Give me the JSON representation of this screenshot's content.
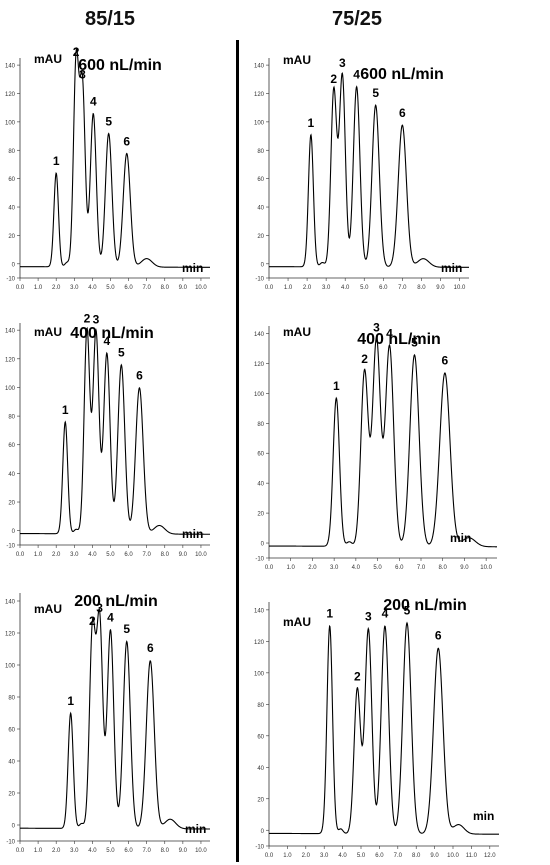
{
  "columns": [
    {
      "header": "85/15"
    },
    {
      "header": "75/25"
    }
  ],
  "common": {
    "y_unit": "mAU",
    "x_unit": "min",
    "peak_labels": [
      "1",
      "2",
      "3",
      "4",
      "5",
      "6"
    ],
    "trace_color": "#000000"
  },
  "chart_data": [
    {
      "type": "line",
      "title": "600 nL/min",
      "ylabel": "mAU",
      "xlabel": "min",
      "xlim": [
        0,
        10.5
      ],
      "ylim": [
        -10,
        145
      ],
      "xticks": [
        "0.0",
        "1.0",
        "2.0",
        "3.0",
        "4.0",
        "5.0",
        "6.0",
        "7.0",
        "8.0",
        "9.0",
        "10.0"
      ],
      "yticks": [
        "-10",
        "0",
        "20",
        "40",
        "60",
        "80",
        "100",
        "120",
        "140"
      ],
      "peaks": [
        {
          "label": "1",
          "time": 2.0,
          "height": 66
        },
        {
          "label": "2",
          "time": 3.1,
          "height": 143
        },
        {
          "label": "3",
          "time": 3.45,
          "height": 127
        },
        {
          "label": "4",
          "time": 4.05,
          "height": 108
        },
        {
          "label": "5",
          "time": 4.9,
          "height": 94
        },
        {
          "label": "6",
          "time": 5.9,
          "height": 80
        }
      ]
    },
    {
      "type": "line",
      "title": "600 nL/min",
      "ylabel": "mAU",
      "xlabel": "min",
      "xlim": [
        0,
        10.5
      ],
      "ylim": [
        -10,
        145
      ],
      "xticks": [
        "0.0",
        "1.0",
        "2.0",
        "3.0",
        "4.0",
        "5.0",
        "6.0",
        "7.0",
        "8.0",
        "9.0",
        "10.0"
      ],
      "yticks": [
        "-10",
        "0",
        "20",
        "40",
        "60",
        "80",
        "100",
        "120",
        "140"
      ],
      "peaks": [
        {
          "label": "1",
          "time": 2.2,
          "height": 93
        },
        {
          "label": "2",
          "time": 3.4,
          "height": 124
        },
        {
          "label": "3",
          "time": 3.85,
          "height": 135
        },
        {
          "label": "4",
          "time": 4.6,
          "height": 127
        },
        {
          "label": "5",
          "time": 5.6,
          "height": 114
        },
        {
          "label": "6",
          "time": 7.0,
          "height": 100
        }
      ]
    },
    {
      "type": "line",
      "title": "400 nL/min",
      "ylabel": "mAU",
      "xlabel": "min",
      "xlim": [
        0,
        10.5
      ],
      "ylim": [
        -10,
        145
      ],
      "xticks": [
        "0.0",
        "1.0",
        "2.0",
        "3.0",
        "4.0",
        "5.0",
        "6.0",
        "7.0",
        "8.0",
        "9.0",
        "10.0"
      ],
      "yticks": [
        "-10",
        "0",
        "20",
        "40",
        "60",
        "80",
        "100",
        "120",
        "140"
      ],
      "peaks": [
        {
          "label": "1",
          "time": 2.5,
          "height": 78
        },
        {
          "label": "2",
          "time": 3.7,
          "height": 142
        },
        {
          "label": "3",
          "time": 4.2,
          "height": 141
        },
        {
          "label": "4",
          "time": 4.8,
          "height": 126
        },
        {
          "label": "5",
          "time": 5.6,
          "height": 118
        },
        {
          "label": "6",
          "time": 6.6,
          "height": 102
        }
      ]
    },
    {
      "type": "line",
      "title": "400 nL/min",
      "ylabel": "mAU",
      "xlabel": "min",
      "xlim": [
        0,
        10.5
      ],
      "ylim": [
        -10,
        145
      ],
      "xticks": [
        "0.0",
        "1.0",
        "2.0",
        "3.0",
        "4.0",
        "5.0",
        "6.0",
        "7.0",
        "8.0",
        "9.0",
        "10.0"
      ],
      "yticks": [
        "-10",
        "0",
        "20",
        "40",
        "60",
        "80",
        "100",
        "120",
        "140"
      ],
      "peaks": [
        {
          "label": "1",
          "time": 3.1,
          "height": 99
        },
        {
          "label": "2",
          "time": 4.4,
          "height": 117
        },
        {
          "label": "3",
          "time": 4.95,
          "height": 138
        },
        {
          "label": "4",
          "time": 5.55,
          "height": 134
        },
        {
          "label": "5",
          "time": 6.7,
          "height": 128
        },
        {
          "label": "6",
          "time": 8.1,
          "height": 116
        }
      ]
    },
    {
      "type": "line",
      "title": "200 nL/min",
      "ylabel": "mAU",
      "xlabel": "min",
      "xlim": [
        0,
        10.5
      ],
      "ylim": [
        -10,
        145
      ],
      "xticks": [
        "0.0",
        "1.0",
        "2.0",
        "3.0",
        "4.0",
        "5.0",
        "6.0",
        "7.0",
        "8.0",
        "9.0",
        "10.0"
      ],
      "yticks": [
        "-10",
        "0",
        "20",
        "40",
        "60",
        "80",
        "100",
        "120",
        "140"
      ],
      "peaks": [
        {
          "label": "1",
          "time": 2.8,
          "height": 72
        },
        {
          "label": "2",
          "time": 4.0,
          "height": 122
        },
        {
          "label": "3",
          "time": 4.4,
          "height": 130
        },
        {
          "label": "4",
          "time": 5.0,
          "height": 124
        },
        {
          "label": "5",
          "time": 5.9,
          "height": 117
        },
        {
          "label": "6",
          "time": 7.2,
          "height": 105
        }
      ]
    },
    {
      "type": "line",
      "title": "200 nL/min",
      "ylabel": "mAU",
      "xlabel": "min",
      "xlim": [
        0,
        12.5
      ],
      "ylim": [
        -10,
        145
      ],
      "xticks": [
        "0.0",
        "1.0",
        "2.0",
        "3.0",
        "4.0",
        "5.0",
        "6.0",
        "7.0",
        "8.0",
        "9.0",
        "10.0",
        "11.0",
        "12.0"
      ],
      "yticks": [
        "-10",
        "0",
        "20",
        "40",
        "60",
        "80",
        "100",
        "120",
        "140"
      ],
      "peaks": [
        {
          "label": "1",
          "time": 3.3,
          "height": 132
        },
        {
          "label": "2",
          "time": 4.8,
          "height": 92
        },
        {
          "label": "3",
          "time": 5.4,
          "height": 130
        },
        {
          "label": "4",
          "time": 6.3,
          "height": 132
        },
        {
          "label": "5",
          "time": 7.5,
          "height": 134
        },
        {
          "label": "6",
          "time": 9.2,
          "height": 118
        }
      ]
    }
  ]
}
